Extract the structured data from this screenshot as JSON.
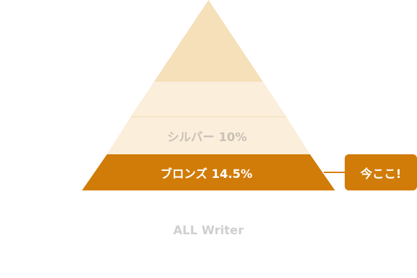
{
  "pyramid": {
    "levels": [
      {
        "id": "top",
        "label": "",
        "fill": "#f5e0b9"
      },
      {
        "id": "upper-middle",
        "label": "",
        "fill": "#fbeeda"
      },
      {
        "id": "silver",
        "label": "シルバー 10%",
        "fill": "#fbeeda",
        "text_color": "#c9c0b7"
      },
      {
        "id": "bronze",
        "label": "ブロンズ 14.5%",
        "fill": "#d17c08",
        "text_color": "#ffffff",
        "highlighted": true
      }
    ],
    "divider_color": "#f3dcb6"
  },
  "callout": {
    "label": "今ここ!",
    "color": "#d17c08"
  },
  "footer": {
    "label": "ALL Writer",
    "color": "#cfcfcf"
  }
}
